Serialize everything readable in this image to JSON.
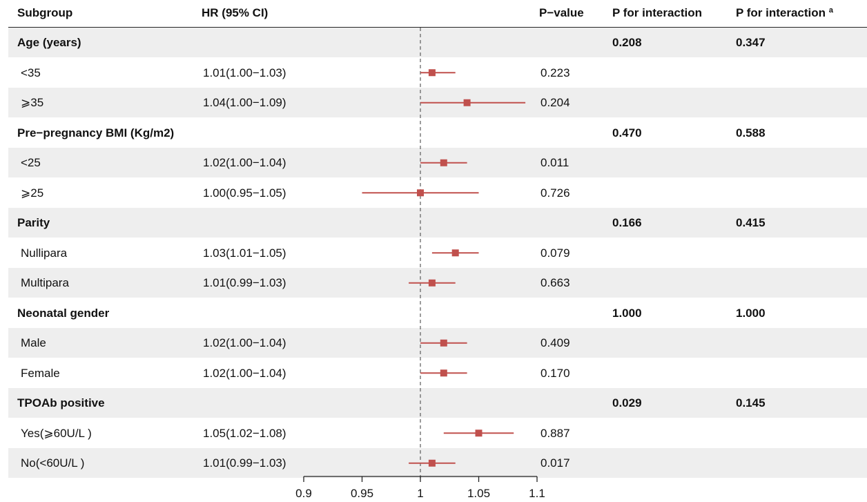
{
  "header": {
    "subgroup": "Subgroup",
    "hr": "HR (95% CI)",
    "pvalue": "P−value",
    "p_interaction": "P for interaction",
    "p_interaction_a": "P for interaction ª"
  },
  "rows": [
    {
      "label": "Age (years)",
      "header": true,
      "shaded": true,
      "p_int": "0.208",
      "p_int_a": "0.347"
    },
    {
      "label": "<35",
      "hr_text": "1.01(1.00−1.03)",
      "p": "0.223",
      "shaded": false
    },
    {
      "label": "⩾35",
      "hr_text": "1.04(1.00−1.09)",
      "p": "0.204",
      "shaded": true
    },
    {
      "label": "Pre−pregnancy BMI (Kg/m2)",
      "header": true,
      "shaded": false,
      "p_int": "0.470",
      "p_int_a": "0.588"
    },
    {
      "label": "<25",
      "hr_text": "1.02(1.00−1.04)",
      "p": "0.011",
      "shaded": true
    },
    {
      "label": "⩾25",
      "hr_text": "1.00(0.95−1.05)",
      "p": "0.726",
      "shaded": false
    },
    {
      "label": "Parity",
      "header": true,
      "shaded": true,
      "p_int": "0.166",
      "p_int_a": "0.415"
    },
    {
      "label": "Nullipara",
      "hr_text": "1.03(1.01−1.05)",
      "p": "0.079",
      "shaded": false
    },
    {
      "label": "Multipara",
      "hr_text": "1.01(0.99−1.03)",
      "p": "0.663",
      "shaded": true
    },
    {
      "label": "Neonatal gender",
      "header": true,
      "shaded": false,
      "p_int": "1.000",
      "p_int_a": "1.000"
    },
    {
      "label": "Male",
      "hr_text": "1.02(1.00−1.04)",
      "p": "0.409",
      "shaded": true
    },
    {
      "label": "Female",
      "hr_text": "1.02(1.00−1.04)",
      "p": "0.170",
      "shaded": false
    },
    {
      "label": "TPOAb positive",
      "header": true,
      "shaded": true,
      "p_int": "0.029",
      "p_int_a": "0.145"
    },
    {
      "label": "Yes(⩾60U/L )",
      "hr_text": "1.05(1.02−1.08)",
      "p": "0.887",
      "shaded": false
    },
    {
      "label": "No(<60U/L )",
      "hr_text": "1.01(0.99−1.03)",
      "p": "0.017",
      "shaded": true
    }
  ],
  "chart_data": {
    "type": "forest",
    "reference_line": 1,
    "xlim": [
      0.9,
      1.1
    ],
    "xticks": [
      0.9,
      0.95,
      1,
      1.05,
      1.1
    ],
    "xtick_labels": [
      "0.9",
      "0.95",
      "1",
      "1.05",
      "1.1"
    ],
    "marker_color": "#c0504d",
    "points": [
      {
        "row": 1,
        "hr": 1.01,
        "lo": 1.0,
        "hi": 1.03
      },
      {
        "row": 2,
        "hr": 1.04,
        "lo": 1.0,
        "hi": 1.09
      },
      {
        "row": 4,
        "hr": 1.02,
        "lo": 1.0,
        "hi": 1.04
      },
      {
        "row": 5,
        "hr": 1.0,
        "lo": 0.95,
        "hi": 1.05
      },
      {
        "row": 7,
        "hr": 1.03,
        "lo": 1.01,
        "hi": 1.05
      },
      {
        "row": 8,
        "hr": 1.01,
        "lo": 0.99,
        "hi": 1.03
      },
      {
        "row": 10,
        "hr": 1.02,
        "lo": 1.0,
        "hi": 1.04
      },
      {
        "row": 11,
        "hr": 1.02,
        "lo": 1.0,
        "hi": 1.04
      },
      {
        "row": 13,
        "hr": 1.05,
        "lo": 1.02,
        "hi": 1.08
      },
      {
        "row": 14,
        "hr": 1.01,
        "lo": 0.99,
        "hi": 1.03
      }
    ]
  }
}
